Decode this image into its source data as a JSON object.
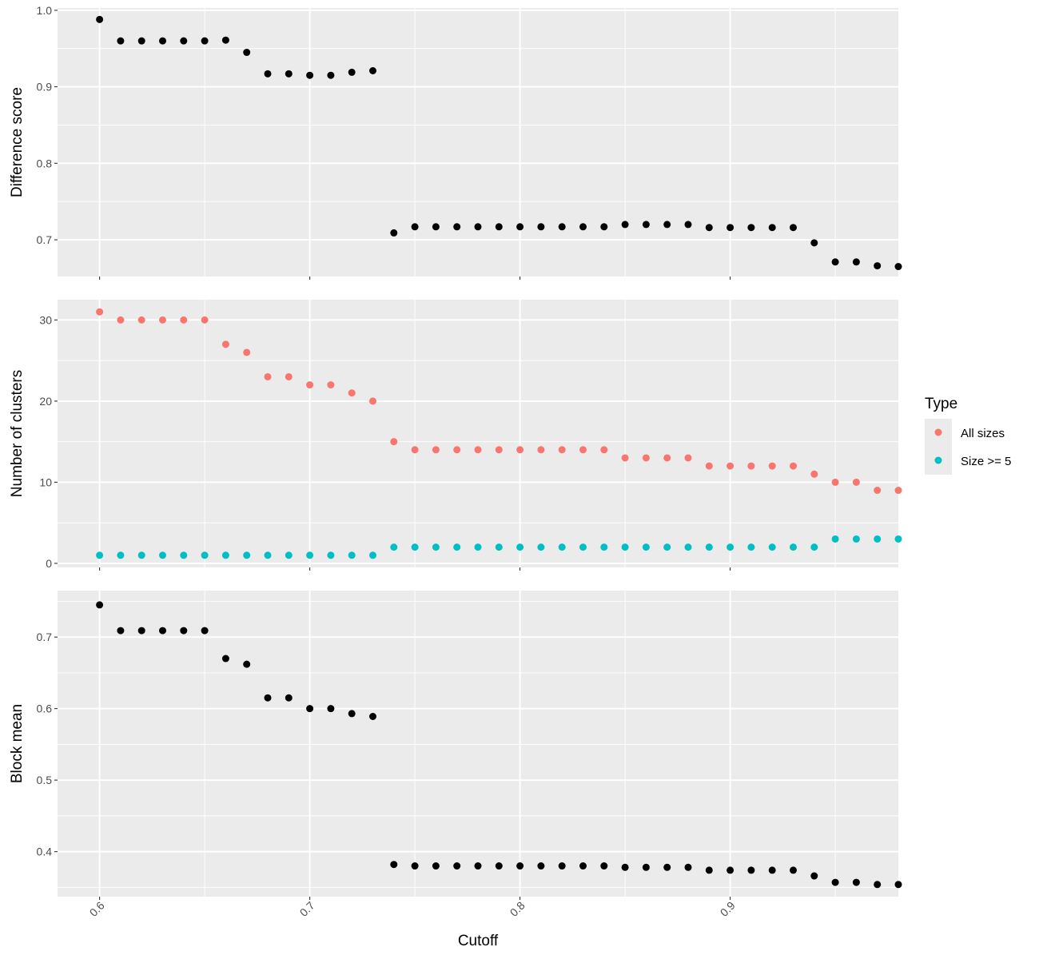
{
  "chart_data": {
    "type": "scatter",
    "xlabel": "Cutoff",
    "x_ticks": [
      0.6,
      0.7,
      0.8,
      0.9
    ],
    "x_tick_labels": [
      "0.6",
      "0.7",
      "0.8",
      "0.9"
    ],
    "xlim": [
      0.58,
      0.98
    ],
    "x": [
      0.6,
      0.61,
      0.62,
      0.63,
      0.64,
      0.65,
      0.66,
      0.67,
      0.68,
      0.69,
      0.7,
      0.71,
      0.72,
      0.73,
      0.74,
      0.75,
      0.76,
      0.77,
      0.78,
      0.79,
      0.8,
      0.81,
      0.82,
      0.83,
      0.84,
      0.85,
      0.86,
      0.87,
      0.88,
      0.89,
      0.9,
      0.91,
      0.92,
      0.93,
      0.94,
      0.95,
      0.96,
      0.97,
      0.98
    ],
    "panels": [
      {
        "ylabel": "Difference score",
        "ylim": [
          0.652,
          1.003
        ],
        "y_ticks": [
          0.7,
          0.8,
          0.9,
          1.0
        ],
        "y_tick_labels": [
          "0.7",
          "0.8",
          "0.9",
          "1.0"
        ],
        "series": [
          {
            "color": "#000000",
            "values": [
              0.988,
              0.96,
              0.96,
              0.96,
              0.96,
              0.96,
              0.961,
              0.945,
              0.917,
              0.917,
              0.915,
              0.915,
              0.919,
              0.921,
              0.709,
              0.717,
              0.717,
              0.717,
              0.717,
              0.717,
              0.717,
              0.717,
              0.717,
              0.717,
              0.717,
              0.72,
              0.72,
              0.72,
              0.72,
              0.716,
              0.716,
              0.716,
              0.716,
              0.716,
              0.696,
              0.671,
              0.671,
              0.666,
              0.665
            ]
          }
        ]
      },
      {
        "ylabel": "Number of clusters",
        "ylim": [
          -0.5,
          32.5
        ],
        "y_ticks": [
          0,
          10,
          20,
          30
        ],
        "y_tick_labels": [
          "0",
          "10",
          "20",
          "30"
        ],
        "series": [
          {
            "name": "All sizes",
            "color": "#F8766D",
            "values": [
              31,
              30,
              30,
              30,
              30,
              30,
              27,
              26,
              23,
              23,
              22,
              22,
              21,
              20,
              15,
              14,
              14,
              14,
              14,
              14,
              14,
              14,
              14,
              14,
              14,
              13,
              13,
              13,
              13,
              12,
              12,
              12,
              12,
              12,
              11,
              10,
              10,
              9,
              9
            ]
          },
          {
            "name": "Size >= 5",
            "color": "#00BFC4",
            "values": [
              1,
              1,
              1,
              1,
              1,
              1,
              1,
              1,
              1,
              1,
              1,
              1,
              1,
              1,
              2,
              2,
              2,
              2,
              2,
              2,
              2,
              2,
              2,
              2,
              2,
              2,
              2,
              2,
              2,
              2,
              2,
              2,
              2,
              2,
              2,
              3,
              3,
              3,
              3
            ]
          }
        ]
      },
      {
        "ylabel": "Block mean",
        "ylim": [
          0.337,
          0.765
        ],
        "y_ticks": [
          0.4,
          0.5,
          0.6,
          0.7
        ],
        "y_tick_labels": [
          "0.4",
          "0.5",
          "0.6",
          "0.7"
        ],
        "series": [
          {
            "color": "#000000",
            "values": [
              0.745,
              0.709,
              0.709,
              0.709,
              0.709,
              0.709,
              0.67,
              0.662,
              0.615,
              0.615,
              0.6,
              0.6,
              0.593,
              0.589,
              0.382,
              0.38,
              0.38,
              0.38,
              0.38,
              0.38,
              0.38,
              0.38,
              0.38,
              0.38,
              0.38,
              0.378,
              0.378,
              0.378,
              0.378,
              0.374,
              0.374,
              0.374,
              0.374,
              0.374,
              0.366,
              0.357,
              0.357,
              0.354,
              0.354
            ]
          }
        ]
      }
    ],
    "legend": {
      "title": "Type",
      "position": "right",
      "entries": [
        {
          "label": "All sizes",
          "color": "#F8766D"
        },
        {
          "label": "Size >= 5",
          "color": "#00BFC4"
        }
      ]
    },
    "panel_background": "#EBEBEB",
    "grid_color": "#FFFFFF"
  }
}
